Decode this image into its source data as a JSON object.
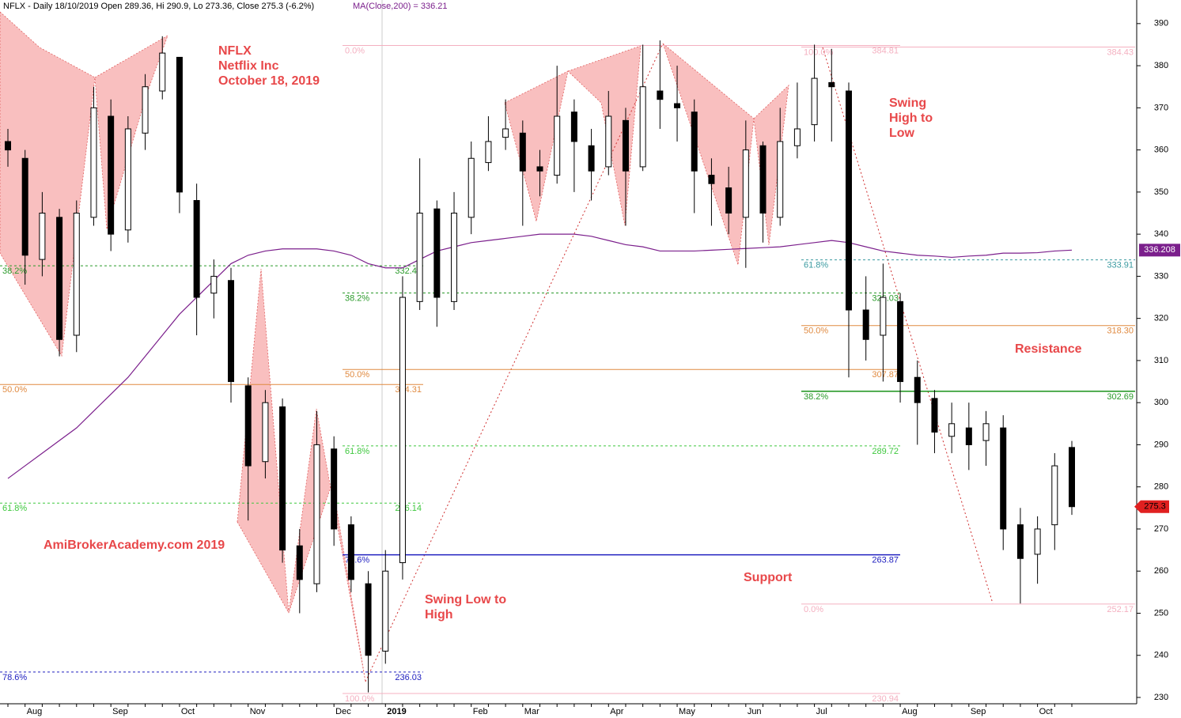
{
  "chart_data": {
    "type": "candlestick",
    "header": "NFLX - Daily 18/10/2019 Open 289.36, Hi 290.9, Lo 273.36, Close 275.3 (-6.2%)",
    "header_ma": "MA(Close,200) = 336.21",
    "annotations": [
      "NFLX",
      "Netflix Inc",
      "October 18, 2019",
      "AmiBrokerAcademy.com   2019",
      "Swing Low to",
      "High",
      "Swing",
      "High to",
      "Low",
      "Resistance",
      "Support"
    ],
    "categories": [
      null,
      "Aug",
      null,
      null,
      null,
      null,
      "Sep",
      null,
      null,
      null,
      "Oct",
      null,
      null,
      null,
      "Nov",
      null,
      null,
      null,
      null,
      "Dec",
      null,
      null,
      "2019",
      null,
      null,
      null,
      null,
      "Feb",
      null,
      null,
      "Mar",
      null,
      null,
      null,
      null,
      "Apr",
      null,
      null,
      null,
      "May",
      null,
      null,
      null,
      "Jun",
      null,
      null,
      null,
      "Jul",
      null,
      null,
      null,
      null,
      "Aug",
      null,
      null,
      null,
      "Sep",
      null,
      null,
      null,
      "Oct",
      null,
      null
    ],
    "open": [
      362,
      358,
      334,
      344,
      316,
      344,
      368,
      341,
      364,
      374,
      382,
      348,
      326,
      329,
      304,
      286,
      299,
      266,
      257,
      289,
      271,
      257,
      241,
      262,
      324,
      346,
      324,
      344,
      357,
      363,
      364,
      356,
      354,
      369,
      361,
      356,
      367,
      356,
      374,
      371,
      369,
      354,
      351,
      344,
      361,
      344,
      361,
      366,
      376,
      374,
      322,
      316,
      324,
      306,
      301,
      292,
      294,
      291,
      294,
      271,
      264,
      271,
      289.36
    ],
    "high": [
      365,
      360,
      350,
      346,
      348,
      375,
      372,
      368,
      378,
      387,
      382,
      352,
      334,
      332,
      306,
      303,
      301,
      270,
      298,
      292,
      273,
      260,
      265,
      330,
      358,
      348,
      350,
      362,
      368,
      372,
      367,
      360,
      380,
      372,
      365,
      374,
      370,
      385,
      386,
      380,
      372,
      358,
      356,
      367,
      362,
      370,
      376,
      385,
      384,
      376,
      330,
      333,
      326,
      310,
      303,
      300,
      300,
      298,
      297,
      275,
      273,
      288,
      290.9
    ],
    "low": [
      356,
      328,
      330,
      311,
      312,
      342,
      336,
      338,
      360,
      372,
      345,
      316,
      320,
      300,
      272,
      282,
      262,
      250,
      255,
      266,
      255,
      231.2,
      238,
      258,
      322,
      318,
      322,
      340,
      355,
      360,
      342,
      349,
      352,
      350,
      348,
      354,
      342,
      355,
      365,
      362,
      345,
      342,
      340,
      332,
      338,
      342,
      358,
      362,
      362,
      306,
      310,
      305,
      300,
      290,
      288,
      288,
      284,
      285,
      265,
      252.3,
      257,
      265,
      273.36
    ],
    "close": [
      360,
      335,
      345,
      315,
      345,
      370,
      340,
      365,
      375,
      383,
      350,
      325,
      330,
      305,
      285,
      300,
      265,
      258,
      290,
      270,
      258,
      240,
      260,
      325,
      345,
      325,
      345,
      358,
      362,
      365,
      355,
      355,
      368,
      362,
      355,
      368,
      355,
      375,
      372,
      370,
      355,
      352,
      345,
      360,
      345,
      362,
      365,
      377,
      375,
      322,
      315,
      325,
      305,
      300,
      293,
      295,
      290,
      295,
      270,
      263,
      270,
      285,
      275.3
    ],
    "ma": {
      "name": "336.208",
      "color": "#7b1f8c",
      "values": [
        282,
        285,
        288,
        291,
        294,
        298,
        302,
        306,
        311,
        316,
        321,
        325,
        329,
        333,
        335,
        336,
        336.5,
        336.5,
        336.5,
        336,
        335,
        333,
        332,
        332,
        334,
        336,
        337,
        338,
        338.5,
        339,
        339.5,
        340,
        340,
        340,
        339.5,
        338.5,
        337.5,
        337,
        336,
        336,
        336,
        336.2,
        336.4,
        336.6,
        336.8,
        337,
        337.5,
        338,
        338.5,
        338,
        337,
        336,
        335.5,
        335,
        334.8,
        334.5,
        334.8,
        335,
        335.5,
        335.5,
        335.6,
        336,
        336.21
      ]
    },
    "last_close_label": "275.3",
    "ylim": [
      228.5,
      395.6
    ],
    "yticks": [
      230,
      240,
      250,
      260,
      270,
      280,
      290,
      300,
      310,
      320,
      330,
      340,
      350,
      360,
      370,
      380,
      390
    ],
    "fib_sets": [
      {
        "levels": [
          {
            "pct": "38.2%",
            "value": 332.49,
            "label": "332.49"
          },
          {
            "pct": "50.0%",
            "value": 304.31,
            "label": "304.31"
          },
          {
            "pct": "61.8%",
            "value": 276.14,
            "label": "276.14"
          },
          {
            "pct": "78.6%",
            "value": 236.03,
            "label": "236.03"
          }
        ]
      },
      {
        "levels": [
          {
            "pct": "0.0%",
            "value": 384.81,
            "label": "384.81"
          },
          {
            "pct": "38.2%",
            "value": 326.03,
            "label": "326.03"
          },
          {
            "pct": "50.0%",
            "value": 307.87,
            "label": "307.87"
          },
          {
            "pct": "61.8%",
            "value": 289.72,
            "label": "289.72"
          },
          {
            "pct": "78.6%",
            "value": 263.87,
            "label": "263.87"
          },
          {
            "pct": "100.0%",
            "value": 230.94,
            "label": "230.94"
          }
        ]
      },
      {
        "levels": [
          {
            "pct": "100.0%",
            "value": 384.43,
            "label": "384.43"
          },
          {
            "pct": "61.8%",
            "value": 333.91,
            "label": "333.91"
          },
          {
            "pct": "50.0%",
            "value": 318.3,
            "label": "318.30"
          },
          {
            "pct": "38.2%",
            "value": 302.69,
            "label": "302.69"
          },
          {
            "pct": "0.0%",
            "value": 252.17,
            "label": "252.17"
          }
        ]
      }
    ]
  }
}
